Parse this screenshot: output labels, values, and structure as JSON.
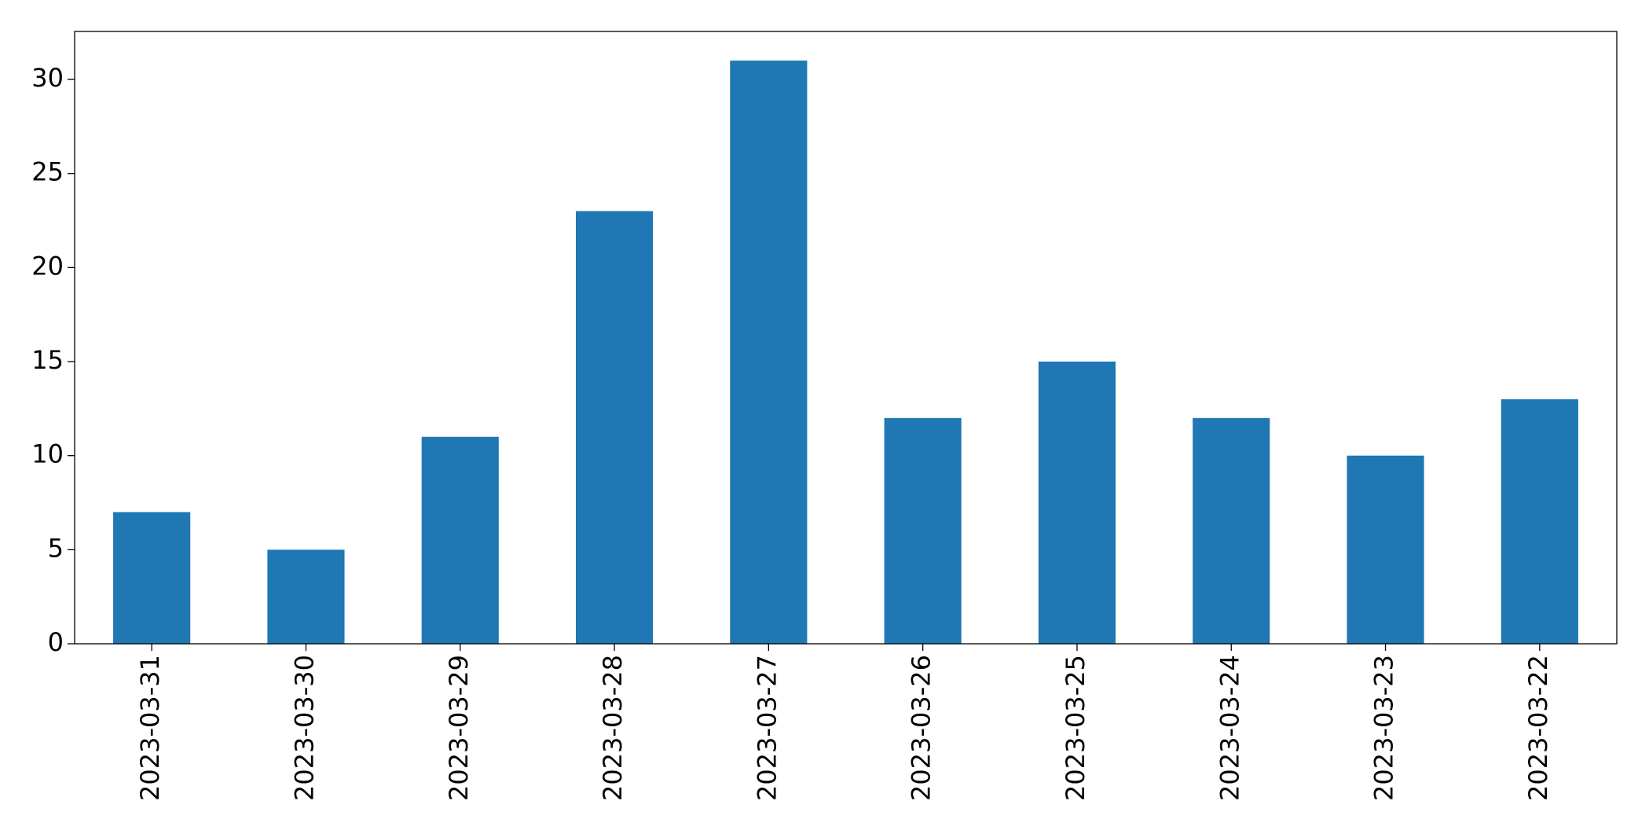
{
  "chart_data": {
    "type": "bar",
    "categories": [
      "2023-03-31",
      "2023-03-30",
      "2023-03-29",
      "2023-03-28",
      "2023-03-27",
      "2023-03-26",
      "2023-03-25",
      "2023-03-24",
      "2023-03-23",
      "2023-03-22"
    ],
    "values": [
      7,
      5,
      11,
      23,
      31,
      12,
      15,
      12,
      10,
      13
    ],
    "color": "#1f77b4",
    "ylim": [
      0,
      32.55
    ],
    "yticks": [
      0,
      5,
      10,
      15,
      20,
      25,
      30
    ],
    "grid": false
  }
}
